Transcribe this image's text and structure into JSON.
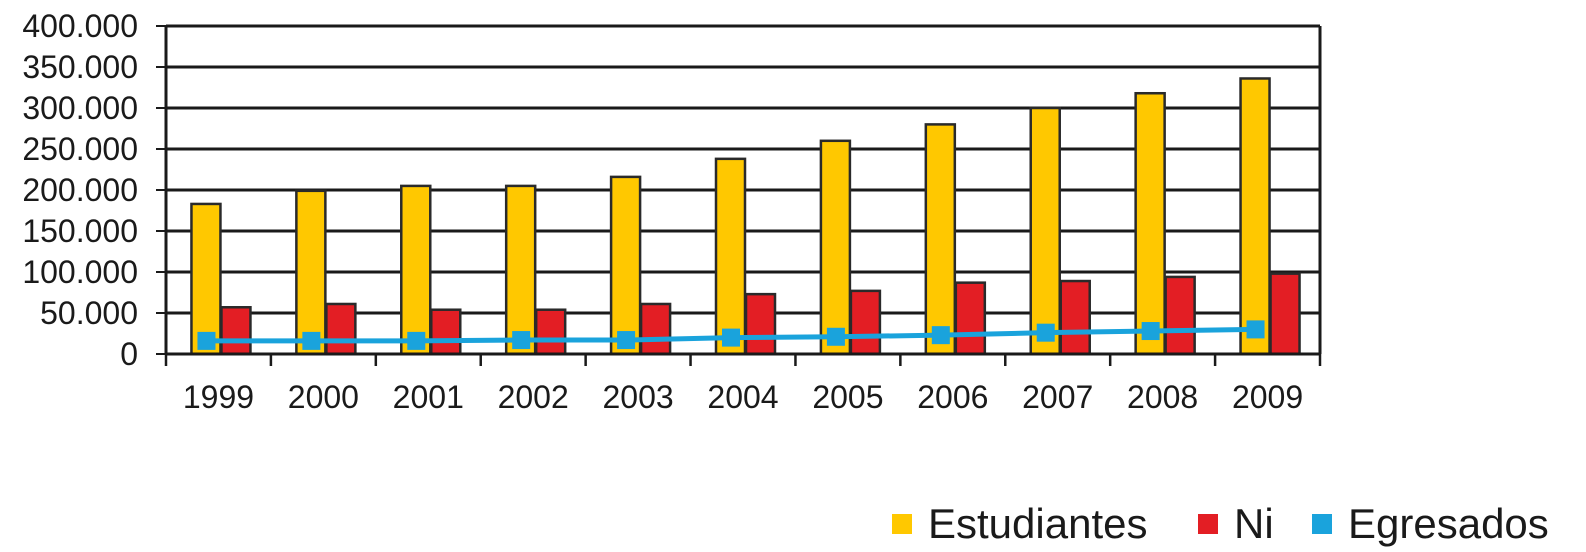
{
  "chart_data": {
    "type": "bar",
    "categories": [
      "1999",
      "2000",
      "2001",
      "2002",
      "2003",
      "2004",
      "2005",
      "2006",
      "2007",
      "2008",
      "2009"
    ],
    "series": [
      {
        "name": "Estudiantes",
        "kind": "bar",
        "color": "#ffc800",
        "values": [
          183000,
          199000,
          205000,
          205000,
          216000,
          238000,
          260000,
          280000,
          300000,
          318000,
          336000
        ]
      },
      {
        "name": "Ni",
        "kind": "bar",
        "color": "#e31e24",
        "values": [
          57000,
          61000,
          54000,
          54000,
          61000,
          73000,
          77000,
          87000,
          89000,
          94000,
          98000
        ]
      },
      {
        "name": "Egresados",
        "kind": "line",
        "color": "#1aa3dc",
        "values": [
          16000,
          16000,
          16000,
          17000,
          17000,
          20000,
          21000,
          23000,
          26000,
          28000,
          30000
        ]
      }
    ],
    "yticks": [
      "0",
      "50.000",
      "100.000",
      "150.000",
      "200.000",
      "250.000",
      "300.000",
      "350.000",
      "400.000"
    ],
    "ylim": [
      0,
      400000
    ],
    "grid": true,
    "legend": "bottom-right"
  }
}
